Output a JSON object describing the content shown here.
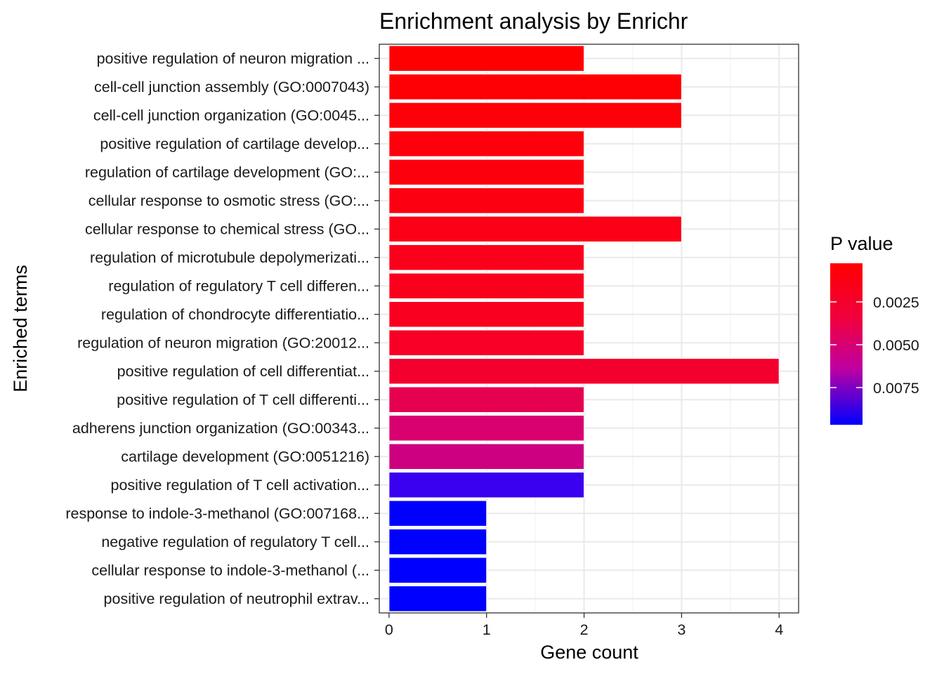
{
  "chart_data": {
    "type": "bar",
    "orientation": "horizontal",
    "title": "Enrichment analysis by Enrichr",
    "xlabel": "Gene count",
    "ylabel": "Enriched terms",
    "xlim": [
      -0.1,
      4.2
    ],
    "xticks": [
      0,
      1,
      2,
      3,
      4
    ],
    "grid": true,
    "categories": [
      "positive regulation of neuron migration ...",
      "cell-cell junction assembly (GO:0007043)",
      "cell-cell junction organization (GO:0045...",
      "positive regulation of cartilage develop...",
      "regulation of cartilage development (GO:...",
      "cellular response to osmotic stress (GO:...",
      "cellular response to chemical stress (GO...",
      "regulation of microtubule depolymerizati...",
      "regulation of regulatory T cell differen...",
      "regulation of chondrocyte differentiatio...",
      "regulation of neuron migration (GO:20012...",
      "positive regulation of cell differentiat...",
      "positive regulation of T cell differenti...",
      "adherens junction organization (GO:00343...",
      "cartilage development (GO:0051216)",
      "positive regulation of T cell activation...",
      "response to indole-3-methanol (GO:007168...",
      "negative regulation of regulatory T cell...",
      "cellular response to indole-3-methanol (...",
      "positive regulation of neutrophil extrav..."
    ],
    "values": [
      2,
      3,
      3,
      2,
      2,
      2,
      3,
      2,
      2,
      2,
      2,
      4,
      2,
      2,
      2,
      2,
      1,
      1,
      1,
      1
    ],
    "bar_colors": [
      "#ff0000",
      "#fe0004",
      "#fe0008",
      "#fd000b",
      "#fd000e",
      "#fc0012",
      "#fc0016",
      "#fb001a",
      "#fa001d",
      "#f90020",
      "#f80026",
      "#f4002e",
      "#e60050",
      "#d9006f",
      "#cc0080",
      "#3a00f0",
      "#0000ff",
      "#0000ff",
      "#0000ff",
      "#0000ff"
    ],
    "legend": {
      "title": "P value",
      "placement": "right",
      "ticks": [
        "0.0025",
        "0.0050",
        "0.0075"
      ],
      "colors": [
        "#ff0000",
        "#0000ff"
      ]
    }
  }
}
